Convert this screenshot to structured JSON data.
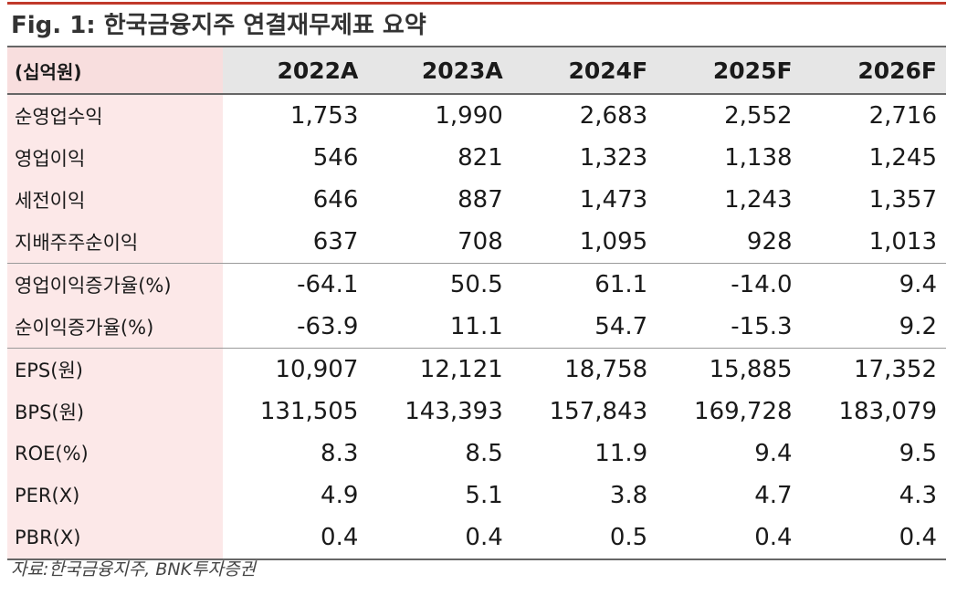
{
  "title": "Fig. 1: 한국금융지주 연결재무제표 요약",
  "unit_label": "(십억원)",
  "years": [
    "2022A",
    "2023A",
    "2024F",
    "2025F",
    "2026F"
  ],
  "rows": [
    {
      "label": "순영업수익",
      "values": [
        "1,753",
        "1,990",
        "2,683",
        "2,552",
        "2,716"
      ]
    },
    {
      "label": "영업이익",
      "values": [
        "546",
        "821",
        "1,323",
        "1,138",
        "1,245"
      ]
    },
    {
      "label": "세전이익",
      "values": [
        "646",
        "887",
        "1,473",
        "1,243",
        "1,357"
      ]
    },
    {
      "label": "지배주주순이익",
      "values": [
        "637",
        "708",
        "1,095",
        "928",
        "1,013"
      ]
    },
    {
      "label": "영업이익증가율(%)",
      "values": [
        "-64.1",
        "50.5",
        "61.1",
        "-14.0",
        "9.4"
      ]
    },
    {
      "label": "순이익증가율(%)",
      "values": [
        "-63.9",
        "11.1",
        "54.7",
        "-15.3",
        "9.2"
      ]
    },
    {
      "label": "EPS(원)",
      "values": [
        "10,907",
        "12,121",
        "18,758",
        "15,885",
        "17,352"
      ]
    },
    {
      "label": "BPS(원)",
      "values": [
        "131,505",
        "143,393",
        "157,843",
        "169,728",
        "183,079"
      ]
    },
    {
      "label": "ROE(%)",
      "values": [
        "8.3",
        "8.5",
        "11.9",
        "9.4",
        "9.5"
      ]
    },
    {
      "label": "PER(X)",
      "values": [
        "4.9",
        "5.1",
        "3.8",
        "4.7",
        "4.3"
      ]
    },
    {
      "label": "PBR(X)",
      "values": [
        "0.4",
        "0.4",
        "0.5",
        "0.4",
        "0.4"
      ]
    }
  ],
  "source": "자료:한국금융지주, BNK투자증권",
  "colors": {
    "accent_rule": "#c0392b",
    "header_bg": "#e6e6e6",
    "label_bg": "#fce8e8"
  }
}
